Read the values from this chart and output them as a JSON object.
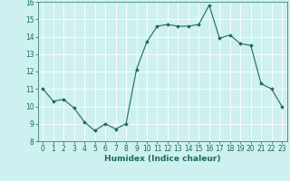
{
  "x": [
    0,
    1,
    2,
    3,
    4,
    5,
    6,
    7,
    8,
    9,
    10,
    11,
    12,
    13,
    14,
    15,
    16,
    17,
    18,
    19,
    20,
    21,
    22,
    23
  ],
  "y": [
    11.0,
    10.3,
    10.4,
    9.9,
    9.1,
    8.6,
    9.0,
    8.7,
    9.0,
    12.1,
    13.7,
    14.6,
    14.7,
    14.6,
    14.6,
    14.7,
    15.8,
    13.9,
    14.1,
    13.6,
    13.5,
    11.3,
    11.0,
    10.0
  ],
  "xlabel": "Humidex (Indice chaleur)",
  "xlim": [
    -0.5,
    23.5
  ],
  "ylim": [
    8,
    16
  ],
  "yticks": [
    8,
    9,
    10,
    11,
    12,
    13,
    14,
    15,
    16
  ],
  "xticks": [
    0,
    1,
    2,
    3,
    4,
    5,
    6,
    7,
    8,
    9,
    10,
    11,
    12,
    13,
    14,
    15,
    16,
    17,
    18,
    19,
    20,
    21,
    22,
    23
  ],
  "line_color": "#1a6b5a",
  "marker": "D",
  "marker_size": 1.8,
  "bg_color": "#cff0f0",
  "grid_color": "#ffffff",
  "tick_labelsize": 5.5,
  "xlabel_fontsize": 6.5
}
